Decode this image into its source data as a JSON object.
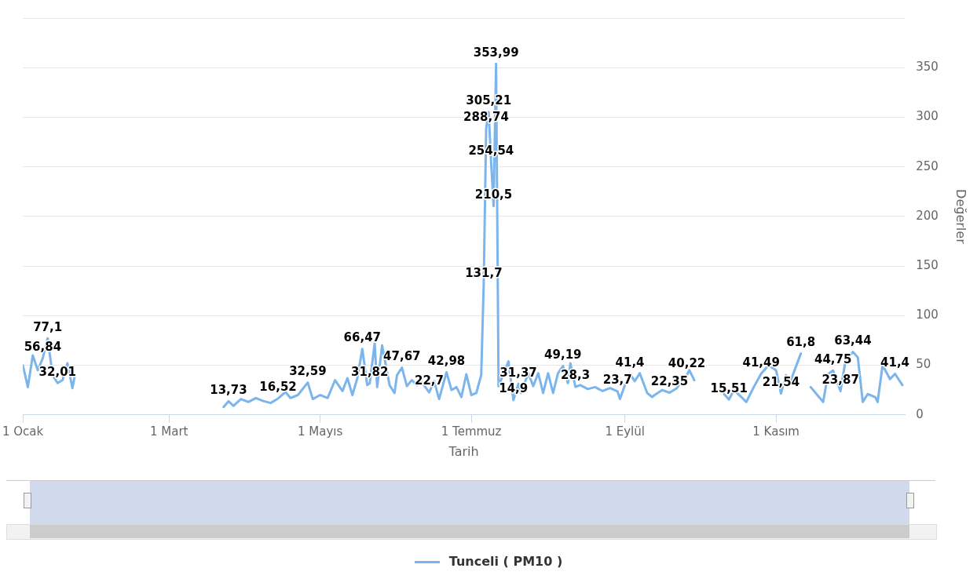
{
  "chart_data": {
    "type": "line",
    "xlabel": "Tarih",
    "ylabel": "Değerler",
    "legend": "bottom",
    "grid": "y",
    "marker": "none",
    "line_style": "solid",
    "xlim": [
      "--01-01",
      "--12-23"
    ],
    "xticks": [
      {
        "value": "--01-01",
        "label": "1 Ocak"
      },
      {
        "value": "--03-01",
        "label": "1 Mart"
      },
      {
        "value": "--05-01",
        "label": "1 Mayıs"
      },
      {
        "value": "--07-01",
        "label": "1 Temmuz"
      },
      {
        "value": "--09-01",
        "label": "1 Eylül"
      },
      {
        "value": "--11-01",
        "label": "1 Kasım"
      }
    ],
    "ylim": [
      0,
      400
    ],
    "yticks": [
      0,
      50,
      100,
      150,
      200,
      250,
      300,
      350,
      {
        "value": 400,
        "label": null
      }
    ],
    "series": [
      {
        "name": "Tunceli ( PM10 )",
        "color": "#7cb5ec",
        "x": [
          "--01-01",
          "--01-03",
          "--01-05",
          "--01-07",
          "--01-09",
          "--01-11",
          "--01-13",
          "--01-15",
          "--01-17",
          "--01-19",
          "--01-21",
          "--01-22",
          "--02-20",
          "--03-23",
          "--03-25",
          "--03-27",
          "--03-30",
          "--04-02",
          "--04-05",
          "--04-08",
          "--04-11",
          "--04-14",
          "--04-17",
          "--04-19",
          "--04-22",
          "--04-26",
          "--04-28",
          "--05-01",
          "--05-04",
          "--05-07",
          "--05-10",
          "--05-12",
          "--05-14",
          "--05-16",
          "--05-18",
          "--05-20",
          "--05-21",
          "--05-23",
          "--05-24",
          "--05-26",
          "--05-29",
          "--05-31",
          "--06-01",
          "--06-03",
          "--06-05",
          "--06-07",
          "--06-09",
          "--06-11",
          "--06-14",
          "--06-16",
          "--06-18",
          "--06-21",
          "--06-23",
          "--06-25",
          "--06-27",
          "--06-29",
          "--07-01",
          "--07-03",
          "--07-05",
          "--07-06",
          "--07-07",
          "--07-08",
          "--07-09",
          "--07-10",
          "--07-11",
          "--07-12",
          "--07-16",
          "--07-18",
          "--07-20",
          "--07-21",
          "--07-24",
          "--07-26",
          "--07-28",
          "--07-30",
          "--08-01",
          "--08-03",
          "--08-05",
          "--08-07",
          "--08-09",
          "--08-10",
          "--08-12",
          "--08-14",
          "--08-17",
          "--08-20",
          "--08-23",
          "--08-26",
          "--08-29",
          "--08-30",
          "--09-01",
          "--09-03",
          "--09-05",
          "--09-07",
          "--09-10",
          "--09-12",
          "--09-13",
          "--09-16",
          "--09-19",
          "--09-22",
          "--09-24",
          "--09-26",
          "--09-27",
          "--09-29",
          "--10-05",
          "--10-11",
          "--10-13",
          "--10-15",
          "--10-18",
          "--10-20",
          "--10-23",
          "--10-26",
          "--10-29",
          "--11-01",
          "--11-03",
          "--11-05",
          "--11-07",
          "--11-11",
          "--11-13",
          "--11-15",
          "--11-17",
          "--11-20",
          "--11-22",
          "--11-24",
          "--11-27",
          "--11-29",
          "--12-02",
          "--12-04",
          "--12-06",
          "--12-08",
          "--12-11",
          "--12-12",
          "--12-14",
          "--12-17",
          "--12-19",
          "--12-22"
        ],
        "values": [
          50,
          28,
          60,
          45,
          56.84,
          77.1,
          40,
          32.01,
          35,
          52,
          27,
          40,
          null,
          8,
          13.73,
          9,
          16,
          13,
          17,
          14,
          12,
          16.52,
          23,
          17,
          20,
          32.59,
          16,
          20,
          17,
          35,
          24,
          37,
          20,
          37,
          66.47,
          30,
          31.82,
          72,
          28,
          70,
          30,
          22,
          40,
          47.67,
          29,
          35,
          30,
          33,
          22.7,
          34,
          16,
          42.98,
          25,
          28,
          18,
          41,
          20,
          22,
          40,
          131.7,
          288.74,
          305.21,
          254.54,
          210.5,
          353.99,
          29,
          54,
          14.9,
          31.37,
          22,
          42,
          29,
          42,
          22,
          42,
          22,
          42,
          49.19,
          32,
          52,
          28.3,
          30,
          26,
          28,
          24,
          27,
          23.7,
          16,
          30,
          41.4,
          34,
          42,
          22,
          18,
          20,
          25,
          22.35,
          27,
          35,
          40.22,
          45,
          35,
          null,
          21,
          15.51,
          25,
          18,
          13,
          28,
          41.49,
          50,
          45,
          21.54,
          40,
          35,
          61.8,
          null,
          28,
          22,
          13,
          41,
          44.75,
          23.87,
          54,
          63.44,
          58,
          13,
          21,
          18,
          13,
          50,
          36,
          41.4,
          30
        ],
        "value_labels": [
          null,
          null,
          null,
          null,
          "56,84",
          "77,1",
          null,
          "32,01",
          null,
          null,
          null,
          null,
          null,
          null,
          "13,73",
          null,
          null,
          null,
          null,
          null,
          null,
          "16,52",
          null,
          null,
          null,
          "32,59",
          null,
          null,
          null,
          null,
          null,
          null,
          null,
          null,
          "66,47",
          null,
          "31,82",
          null,
          null,
          null,
          null,
          null,
          null,
          "47,67",
          null,
          null,
          null,
          null,
          "22,7",
          null,
          null,
          "42,98",
          null,
          null,
          null,
          null,
          null,
          null,
          null,
          "131,7",
          "288,74",
          "305,21",
          "254,54",
          "210,5",
          "353,99",
          null,
          null,
          "14,9",
          "31,37",
          null,
          null,
          null,
          null,
          null,
          null,
          null,
          null,
          "49,19",
          null,
          null,
          "28,3",
          null,
          null,
          null,
          null,
          null,
          "23,7",
          null,
          null,
          "41,4",
          null,
          null,
          null,
          null,
          null,
          null,
          "22,35",
          null,
          null,
          "40,22",
          null,
          null,
          null,
          null,
          "15,51",
          null,
          null,
          null,
          null,
          "41,49",
          null,
          null,
          "21,54",
          null,
          null,
          "61,8",
          null,
          null,
          null,
          null,
          null,
          "44,75",
          "23,87",
          null,
          "63,44",
          null,
          null,
          null,
          null,
          null,
          null,
          null,
          "41,4",
          null
        ]
      }
    ]
  }
}
